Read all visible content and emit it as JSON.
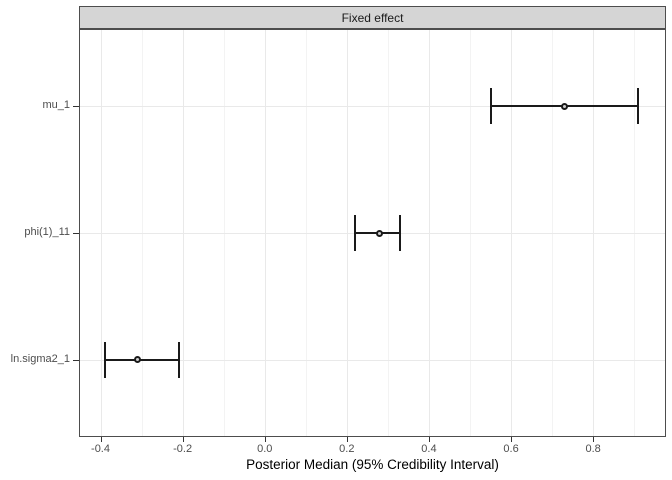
{
  "chart_data": {
    "type": "errorbar",
    "orientation": "horizontal",
    "facet_label": "Fixed effect",
    "xlabel": "Posterior Median (95% Credibility Interval)",
    "rows": [
      {
        "label": "mu_1",
        "median": 0.73,
        "lower": 0.55,
        "upper": 0.91
      },
      {
        "label": "phi(1)_11",
        "median": 0.28,
        "lower": 0.22,
        "upper": 0.33
      },
      {
        "label": "ln.sigma2_1",
        "median": -0.31,
        "lower": -0.39,
        "upper": -0.21
      }
    ],
    "x_ticks": [
      -0.4,
      -0.2,
      0.0,
      0.2,
      0.4,
      0.6,
      0.8
    ],
    "x_tick_labels": [
      "-0.4",
      "-0.2",
      "0.0",
      "0.2",
      "0.4",
      "0.6",
      "0.8"
    ],
    "x_minor_ticks": [
      -0.3,
      -0.1,
      0.1,
      0.3,
      0.5,
      0.7,
      0.9
    ],
    "x_range": [
      -0.45,
      0.975
    ],
    "grid": true,
    "legend": "none",
    "colors": {
      "strip_fill": "#d5d5d5",
      "panel_border": "#4d4d4d",
      "grid_major": "#e9e9e9",
      "grid_minor": "#f3f3f3",
      "data": "#1a1a1a",
      "tick_text": "#4d4d4d",
      "title_text": "#000000"
    }
  }
}
